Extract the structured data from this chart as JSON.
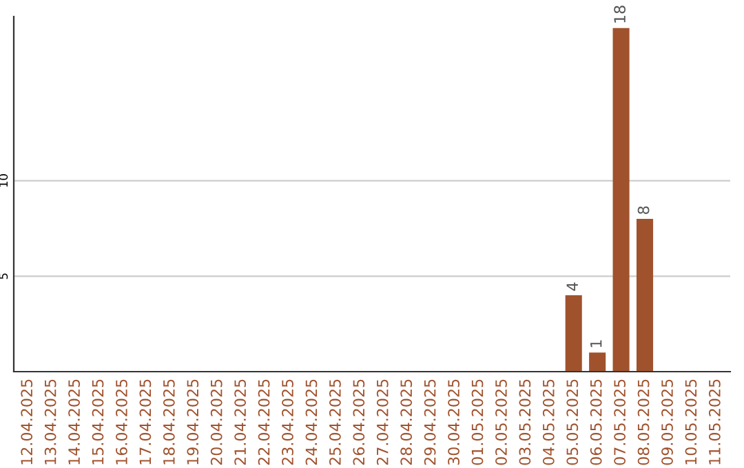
{
  "chart_data": {
    "type": "bar",
    "categories": [
      "12.04.2025",
      "13.04.2025",
      "14.04.2025",
      "15.04.2025",
      "16.04.2025",
      "17.04.2025",
      "18.04.2025",
      "19.04.2025",
      "20.04.2025",
      "21.04.2025",
      "22.04.2025",
      "23.04.2025",
      "24.04.2025",
      "25.04.2025",
      "26.04.2025",
      "27.04.2025",
      "28.04.2025",
      "29.04.2025",
      "30.04.2025",
      "01.05.2025",
      "02.05.2025",
      "03.05.2025",
      "04.05.2025",
      "05.05.2025",
      "06.05.2025",
      "07.05.2025",
      "08.05.2025",
      "09.05.2025",
      "10.05.2025",
      "11.05.2025"
    ],
    "values": [
      0,
      0,
      0,
      0,
      0,
      0,
      0,
      0,
      0,
      0,
      0,
      0,
      0,
      0,
      0,
      0,
      0,
      0,
      0,
      0,
      0,
      0,
      0,
      4,
      1,
      18,
      8,
      0,
      0,
      0
    ],
    "value_labels": [
      null,
      null,
      null,
      null,
      null,
      null,
      null,
      null,
      null,
      null,
      null,
      null,
      null,
      null,
      null,
      null,
      null,
      null,
      null,
      null,
      null,
      null,
      null,
      "4",
      "1",
      "18",
      "8",
      null,
      null,
      null
    ],
    "color": "#a0522d",
    "ylim": [
      0,
      18.6
    ],
    "yticks": [
      5,
      10
    ],
    "grid": "y",
    "legend": false
  }
}
